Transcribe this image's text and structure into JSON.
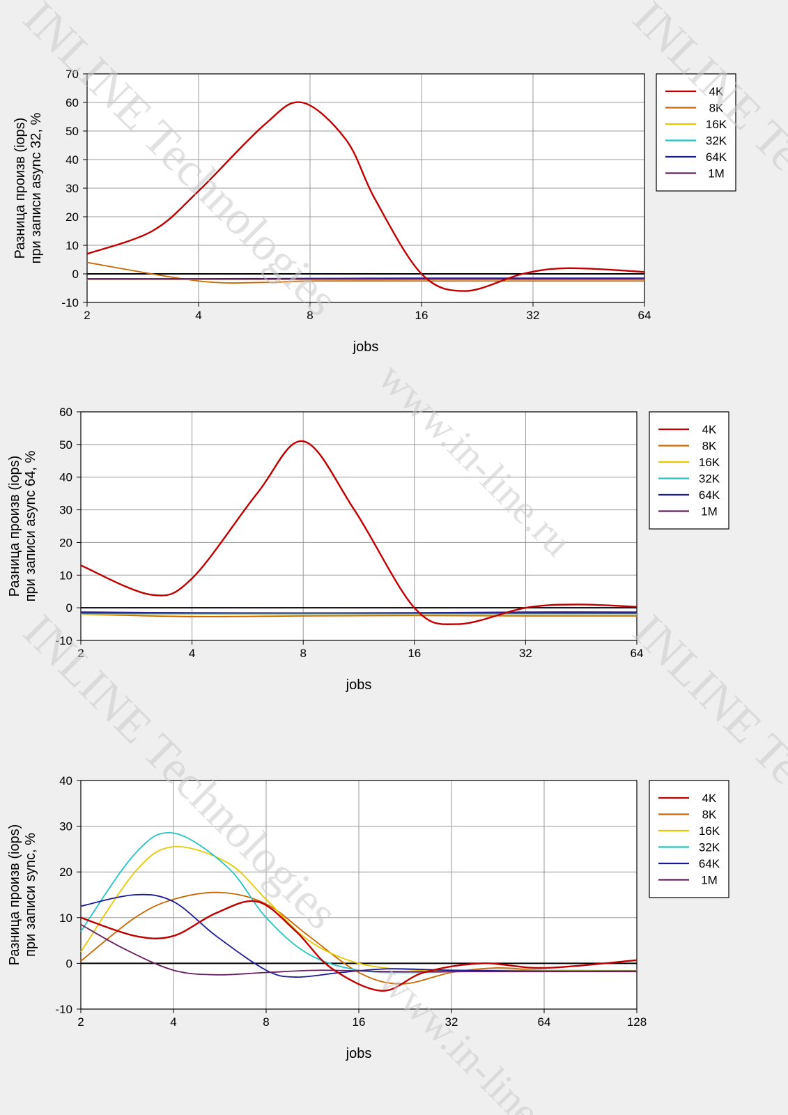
{
  "watermarks": {
    "brand": "INLINE Technologies",
    "url": "www.in-line.ru"
  },
  "chart_data": [
    {
      "type": "line",
      "xscale": "log2",
      "categories": [
        "2",
        "4",
        "8",
        "16",
        "32",
        "64"
      ],
      "xlabel": "jobs",
      "ylabel_lines": [
        "Разница произв (iops)",
        "при записи async 32, %"
      ],
      "ylim": [
        -10,
        70
      ],
      "yticks": [
        -10,
        0,
        10,
        20,
        30,
        40,
        50,
        60,
        70
      ],
      "grid": true,
      "legend_position": "right",
      "series": [
        {
          "name": "4K",
          "color": "#c00000",
          "x": [
            2,
            3,
            4,
            6,
            7.6,
            10,
            12,
            16,
            21,
            30,
            40,
            64
          ],
          "values": [
            7,
            15,
            29,
            52,
            60,
            47,
            26,
            0,
            -6,
            0,
            2,
            0.7
          ]
        },
        {
          "name": "8K",
          "color": "#cc6600",
          "x": [
            2,
            4,
            6,
            8,
            16,
            32,
            64
          ],
          "values": [
            4,
            -2.5,
            -3,
            -2.5,
            -2.5,
            -2.5,
            -2.5
          ]
        },
        {
          "name": "16K",
          "color": "#e6c800",
          "x": [
            2,
            4,
            8,
            16,
            32,
            64
          ],
          "values": [
            -2,
            -2,
            -2,
            -2,
            -2,
            -2
          ]
        },
        {
          "name": "32K",
          "color": "#22c4c4",
          "x": [
            2,
            4,
            8,
            16,
            32,
            64
          ],
          "values": [
            -1.7,
            -1.7,
            -1.7,
            -1.7,
            -1.7,
            -1.7
          ]
        },
        {
          "name": "64K",
          "color": "#1a1a99",
          "x": [
            2,
            4,
            8,
            16,
            32,
            64
          ],
          "values": [
            -1.7,
            -1.7,
            -1.6,
            -1.5,
            -1.5,
            -1.5
          ]
        },
        {
          "name": "1M",
          "color": "#66205e",
          "x": [
            2,
            4,
            8,
            16,
            32,
            64
          ],
          "values": [
            -1.8,
            -1.8,
            -1.8,
            -1.8,
            -1.8,
            -1.8
          ]
        }
      ]
    },
    {
      "type": "line",
      "xscale": "log2",
      "categories": [
        "2",
        "4",
        "8",
        "16",
        "32",
        "64"
      ],
      "xlabel": "jobs",
      "ylabel_lines": [
        "Разница произв (iops)",
        "при записи async 64, %"
      ],
      "ylim": [
        -10,
        60
      ],
      "yticks": [
        -10,
        0,
        10,
        20,
        30,
        40,
        50,
        60
      ],
      "grid": true,
      "legend_position": "right",
      "series": [
        {
          "name": "4K",
          "color": "#c00000",
          "x": [
            2,
            3.1,
            4,
            6,
            8,
            11,
            16,
            21,
            32,
            44,
            64
          ],
          "values": [
            13,
            4,
            9,
            35,
            51,
            30,
            0,
            -5,
            0,
            1,
            0.3
          ]
        },
        {
          "name": "8K",
          "color": "#cc6600",
          "x": [
            2,
            4,
            8,
            16,
            32,
            64
          ],
          "values": [
            -2,
            -2.7,
            -2.5,
            -2.4,
            -2.5,
            -2.5
          ]
        },
        {
          "name": "16K",
          "color": "#e6c800",
          "x": [
            2,
            4,
            8,
            16,
            32,
            64
          ],
          "values": [
            -2,
            -2,
            -2,
            -2,
            -2,
            -2
          ]
        },
        {
          "name": "32K",
          "color": "#22c4c4",
          "x": [
            2,
            4,
            8,
            16,
            32,
            64
          ],
          "values": [
            -1.7,
            -1.7,
            -1.7,
            -1.7,
            -1.7,
            -1.7
          ]
        },
        {
          "name": "64K",
          "color": "#1a1a99",
          "x": [
            2,
            4,
            8,
            16,
            32,
            64
          ],
          "values": [
            -1.3,
            -1.5,
            -1.6,
            -1.5,
            -1.3,
            -1.3
          ]
        },
        {
          "name": "1M",
          "color": "#66205e",
          "x": [
            2,
            4,
            8,
            16,
            32,
            64
          ],
          "values": [
            -1.6,
            -1.6,
            -1.6,
            -1.6,
            -1.6,
            -1.6
          ]
        }
      ]
    },
    {
      "type": "line",
      "xscale": "log2",
      "categories": [
        "2",
        "4",
        "8",
        "16",
        "32",
        "64",
        "128"
      ],
      "xlabel": "jobs",
      "ylabel_lines": [
        "Разница произв (iops)",
        "при записи sync, %"
      ],
      "ylim": [
        -10,
        40
      ],
      "yticks": [
        -10,
        0,
        10,
        20,
        30,
        40
      ],
      "grid": true,
      "legend_position": "right",
      "series": [
        {
          "name": "4K",
          "color": "#c00000",
          "x": [
            2,
            3,
            4,
            5.5,
            7.5,
            10,
            13,
            19,
            26,
            40,
            64,
            128
          ],
          "values": [
            10,
            6,
            6,
            11,
            13.5,
            7,
            -1,
            -6,
            -2,
            0,
            -1,
            0.7
          ]
        },
        {
          "name": "8K",
          "color": "#cc6600",
          "x": [
            2,
            3,
            4,
            5.7,
            8,
            11,
            16,
            22,
            32,
            45,
            64,
            128
          ],
          "values": [
            0.5,
            10,
            14,
            15.5,
            13,
            6,
            -2,
            -4.5,
            -2,
            -1,
            -1.5,
            -1.7
          ]
        },
        {
          "name": "16K",
          "color": "#e6c800",
          "x": [
            2,
            3,
            4,
            6,
            8,
            11,
            16,
            25,
            40,
            64,
            128
          ],
          "values": [
            2.5,
            20,
            25.5,
            22,
            14,
            5,
            0,
            -1.5,
            -1.5,
            -1.5,
            -1.6
          ]
        },
        {
          "name": "32K",
          "color": "#22c4c4",
          "x": [
            2,
            3,
            4,
            6,
            8,
            11,
            16,
            25,
            40,
            64,
            128
          ],
          "values": [
            7,
            24,
            28.5,
            21,
            10,
            2,
            -1.5,
            -2,
            -1.7,
            -1.7,
            -1.7
          ]
        },
        {
          "name": "64K",
          "color": "#1a1a99",
          "x": [
            2,
            3,
            4,
            5.5,
            8,
            10,
            14,
            20,
            32,
            64,
            128
          ],
          "values": [
            12.5,
            15,
            13.5,
            6,
            -1.5,
            -3,
            -2,
            -1.2,
            -1.5,
            -1.7,
            -1.7
          ]
        },
        {
          "name": "1M",
          "color": "#66205e",
          "x": [
            2,
            2.8,
            4,
            5.5,
            8,
            12,
            20,
            32,
            64,
            128
          ],
          "values": [
            8.5,
            3,
            -1.5,
            -2.5,
            -2,
            -1.5,
            -1.8,
            -1.8,
            -1.8,
            -1.8
          ]
        }
      ]
    }
  ]
}
